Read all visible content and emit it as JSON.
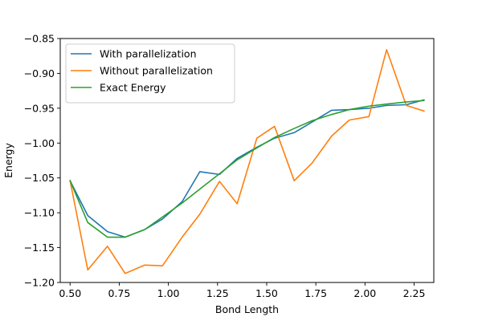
{
  "chart_data": {
    "type": "line",
    "title": "",
    "xlabel": "Bond Length",
    "ylabel": "Energy",
    "xlim": [
      0.45,
      2.35
    ],
    "ylim": [
      -1.2,
      -0.85
    ],
    "xticks": [
      0.5,
      0.75,
      1.0,
      1.25,
      1.5,
      1.75,
      2.0,
      2.25
    ],
    "xtick_labels": [
      "0.50",
      "0.75",
      "1.00",
      "1.25",
      "1.50",
      "1.75",
      "2.00",
      "2.25"
    ],
    "yticks": [
      -1.2,
      -1.15,
      -1.1,
      -1.05,
      -1.0,
      -0.95,
      -0.9,
      -0.85
    ],
    "ytick_labels": [
      "−1.20",
      "−1.15",
      "−1.10",
      "−1.05",
      "−1.00",
      "−0.95",
      "−0.90",
      "−0.85"
    ],
    "grid": false,
    "legend_position": "top-left",
    "x": [
      0.5,
      0.59,
      0.69,
      0.78,
      0.88,
      0.97,
      1.07,
      1.16,
      1.26,
      1.35,
      1.45,
      1.54,
      1.64,
      1.73,
      1.83,
      1.92,
      2.02,
      2.11,
      2.21,
      2.3
    ],
    "series": [
      {
        "name": "With parallelization",
        "color": "#1f77b4",
        "values": [
          -1.054,
          -1.104,
          -1.127,
          -1.135,
          -1.124,
          -1.109,
          -1.084,
          -1.041,
          -1.045,
          -1.022,
          -1.006,
          -0.993,
          -0.985,
          -0.97,
          -0.953,
          -0.952,
          -0.95,
          -0.946,
          -0.945,
          -0.938
        ]
      },
      {
        "name": "Without parallelization",
        "color": "#ff7f0e",
        "values": [
          -1.054,
          -1.182,
          -1.148,
          -1.187,
          -1.175,
          -1.176,
          -1.135,
          -1.102,
          -1.055,
          -1.087,
          -0.993,
          -0.976,
          -1.054,
          -1.029,
          -0.99,
          -0.967,
          -0.962,
          -0.866,
          -0.946,
          -0.954
        ]
      },
      {
        "name": "Exact Energy",
        "color": "#2ca02c",
        "values": [
          -1.054,
          -1.114,
          -1.135,
          -1.135,
          -1.124,
          -1.106,
          -1.086,
          -1.066,
          -1.044,
          -1.024,
          -1.007,
          -0.992,
          -0.979,
          -0.968,
          -0.959,
          -0.952,
          -0.947,
          -0.944,
          -0.941,
          -0.939
        ]
      }
    ]
  }
}
